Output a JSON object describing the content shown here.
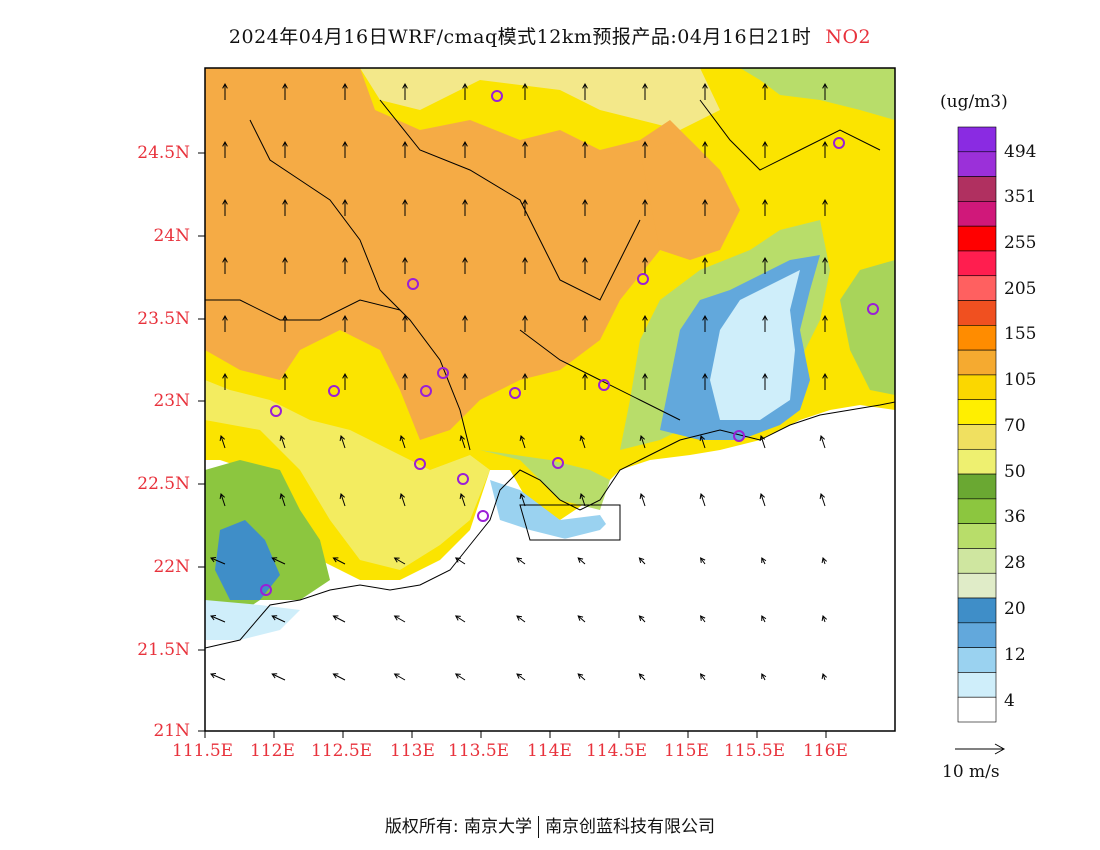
{
  "title": {
    "text": "2024年04月16日WRF/cmaq模式12km预报产品:04月16日21时",
    "pollutant": "NO2"
  },
  "map": {
    "lat_labels": [
      "24.5N",
      "24N",
      "23.5N",
      "23N",
      "22.5N",
      "22N",
      "21.5N",
      "21N"
    ],
    "lon_labels": [
      "111.5E",
      "112E",
      "112.5E",
      "113E",
      "113.5E",
      "114E",
      "114.5E",
      "115E",
      "115.5E",
      "116E"
    ]
  },
  "colorbar": {
    "unit": "(ug/m3)",
    "labels": [
      "494",
      "351",
      "255",
      "205",
      "155",
      "105",
      "70",
      "50",
      "36",
      "28",
      "20",
      "12",
      "4"
    ],
    "colors": [
      "#8a2be2",
      "#9b30d9",
      "#b03060",
      "#d0187a",
      "#ff0000",
      "#ff1e4f",
      "#ff6060",
      "#f05020",
      "#ff8c00",
      "#f5aa30",
      "#fbd700",
      "#ffef00",
      "#f0e060",
      "#eef070",
      "#6aa832",
      "#8cc63f",
      "#b8dd6a",
      "#cfe6a0",
      "#e0ecc8",
      "#3f8ec8",
      "#62a8dc",
      "#9ad2f0",
      "#cfeefa",
      "#ffffff"
    ]
  },
  "wind": {
    "label": "10 m/s"
  },
  "footer": {
    "org1": "版权所有: 南京大学",
    "org2": "南京创蓝科技有限公司"
  },
  "colors": {
    "axis_labels": "#e8323c",
    "city_markers": "#9a1fd6"
  }
}
